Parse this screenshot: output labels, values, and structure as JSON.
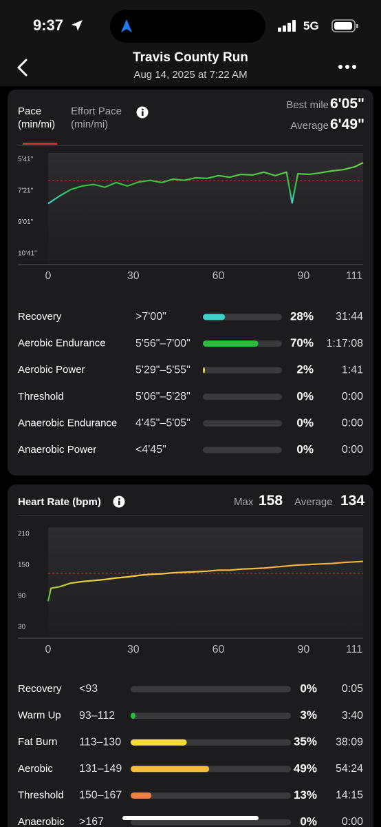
{
  "status_bar": {
    "time": "9:37",
    "network": "5G"
  },
  "header": {
    "title": "Travis County Run",
    "subtitle": "Aug 14, 2025 at 7:22 AM"
  },
  "pace": {
    "tabs": [
      {
        "label": "Pace",
        "unit": "(min/mi)"
      },
      {
        "label": "Effort Pace",
        "unit": "(min/mi)"
      }
    ],
    "best_label": "Best mile",
    "best": "6'05\"",
    "average_label": "Average",
    "average": {
      "value": 409,
      "label": "6'49\""
    },
    "chart": {
      "type": "line",
      "x": [
        0,
        4,
        8,
        12,
        16,
        20,
        24,
        28,
        32,
        36,
        40,
        44,
        48,
        52,
        56,
        60,
        64,
        68,
        72,
        76,
        80,
        84,
        86,
        88,
        92,
        96,
        100,
        104,
        108,
        111
      ],
      "values": [
        482,
        458,
        437,
        426,
        421,
        430,
        415,
        426,
        413,
        408,
        415,
        404,
        408,
        400,
        402,
        393,
        398,
        389,
        391,
        382,
        393,
        382,
        480,
        387,
        389,
        384,
        378,
        374,
        365,
        352
      ],
      "xlim": [
        0,
        111
      ],
      "xticks": [
        0,
        30,
        60,
        90,
        111
      ],
      "ylim": [
        674,
        321
      ],
      "yticks": [
        {
          "value": 341,
          "label": "5'41\""
        },
        {
          "value": 441,
          "label": "7'21\""
        },
        {
          "value": 541,
          "label": "9'01\""
        },
        {
          "value": 641,
          "label": "10'41\""
        }
      ]
    },
    "zones": [
      {
        "name": "Recovery",
        "range": ">7'00\"",
        "percent": 28,
        "percent_label": "28%",
        "time": "31:44",
        "color": "#3ecfc9"
      },
      {
        "name": "Aerobic Endurance",
        "range": "5'56\"–7'00\"",
        "percent": 70,
        "percent_label": "70%",
        "time": "1:17:08",
        "color": "#2bbd3e"
      },
      {
        "name": "Aerobic Power",
        "range": "5'29\"–5'55\"",
        "percent": 2,
        "percent_label": "2%",
        "time": "1:41",
        "color": "#e9d53c"
      },
      {
        "name": "Threshold",
        "range": "5'06\"–5'28\"",
        "percent": 0,
        "percent_label": "0%",
        "time": "0:00",
        "color": "#f08a46"
      },
      {
        "name": "Anaerobic Endurance",
        "range": "4'45\"–5'05\"",
        "percent": 0,
        "percent_label": "0%",
        "time": "0:00",
        "color": "#e8574a"
      },
      {
        "name": "Anaerobic Power",
        "range": "<4'45\"",
        "percent": 0,
        "percent_label": "0%",
        "time": "0:00",
        "color": "#d93b6a"
      }
    ]
  },
  "heart_rate": {
    "title": "Heart Rate (bpm)",
    "max_label": "Max",
    "max": 158,
    "average_label": "Average",
    "average": 134,
    "chart": {
      "type": "line",
      "x": [
        0,
        1,
        4,
        8,
        12,
        16,
        20,
        24,
        28,
        32,
        36,
        40,
        44,
        48,
        52,
        56,
        60,
        64,
        68,
        72,
        76,
        80,
        84,
        88,
        92,
        96,
        100,
        104,
        108,
        111
      ],
      "values": [
        80,
        105,
        108,
        115,
        118,
        120,
        122,
        125,
        127,
        130,
        132,
        133,
        135,
        136,
        137,
        138,
        140,
        140,
        142,
        143,
        144,
        146,
        148,
        150,
        151,
        152,
        153,
        155,
        156,
        157
      ],
      "xlim": [
        0,
        111
      ],
      "xticks": [
        0,
        30,
        60,
        90,
        111
      ],
      "ylim": [
        10,
        223
      ],
      "yticks": [
        210,
        150,
        90,
        30
      ]
    },
    "zones": [
      {
        "name": "Recovery",
        "range": "<93",
        "percent": 0,
        "percent_label": "0%",
        "time": "0:05",
        "color": "#3ecfc9"
      },
      {
        "name": "Warm Up",
        "range": "93–112",
        "percent": 3,
        "percent_label": "3%",
        "time": "3:40",
        "color": "#2bbd3e"
      },
      {
        "name": "Fat Burn",
        "range": "113–130",
        "percent": 35,
        "percent_label": "35%",
        "time": "38:09",
        "color": "#f4dc3e"
      },
      {
        "name": "Aerobic",
        "range": "131–149",
        "percent": 49,
        "percent_label": "49%",
        "time": "54:24",
        "color": "#f4bb3a"
      },
      {
        "name": "Threshold",
        "range": "150–167",
        "percent": 13,
        "percent_label": "13%",
        "time": "14:15",
        "color": "#f07f45"
      },
      {
        "name": "Anaerobic",
        "range": ">167",
        "percent": 0,
        "percent_label": "0%",
        "time": "0:00",
        "color": "#e8574a"
      }
    ]
  }
}
